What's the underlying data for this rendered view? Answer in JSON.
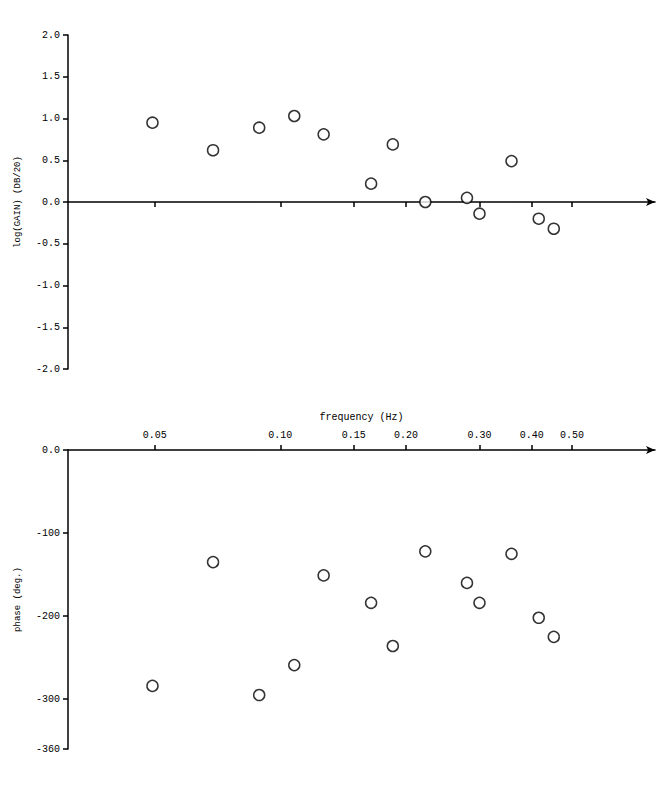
{
  "chart_data": [
    {
      "type": "scatter",
      "y_label": "log(GAIN) (DB/20)",
      "x": [
        0.0494,
        0.069,
        0.089,
        0.108,
        0.127,
        0.165,
        0.186,
        0.2225,
        0.28,
        0.3,
        0.358,
        0.416,
        0.452
      ],
      "values": [
        0.95,
        0.62,
        0.89,
        1.03,
        0.81,
        0.22,
        0.69,
        0.0,
        0.05,
        -0.14,
        0.49,
        -0.2,
        -0.32
      ],
      "xlim": [
        0.031,
        0.79
      ],
      "xticks": [
        0.05,
        {
          "value": 0.1,
          "label": "0.10"
        },
        0.15,
        {
          "value": 0.2,
          "label": "0.20"
        },
        {
          "value": 0.3,
          "label": "0.30"
        },
        {
          "value": 0.4,
          "label": "0.40"
        },
        {
          "value": 0.5,
          "label": "0.50"
        }
      ],
      "ylim": [
        -2,
        2
      ],
      "yticks": [
        {
          "value": -2,
          "label": "-2.0"
        },
        -1.5,
        {
          "value": -1,
          "label": "-1.0"
        },
        -0.5,
        {
          "value": 0,
          "label": "0.0"
        },
        0.5,
        {
          "value": 1,
          "label": "1.0"
        },
        1.5,
        {
          "value": 2,
          "label": "2.0"
        }
      ],
      "log": "x",
      "tick_labels": "y",
      "grid": false,
      "color": "#000000",
      "marker": "open circle"
    },
    {
      "type": "scatter",
      "x_label": "frequency (Hz)",
      "y_label": "phase (deg.)",
      "x": [
        0.0494,
        0.069,
        0.089,
        0.108,
        0.127,
        0.165,
        0.186,
        0.2225,
        0.28,
        0.3,
        0.358,
        0.416,
        0.452
      ],
      "values": [
        -284,
        -135,
        -295,
        -259,
        -151,
        -184,
        -236,
        -122,
        -160,
        -184,
        -125,
        -202,
        -225
      ],
      "xlim": [
        0.031,
        0.79
      ],
      "xticks": [
        0.05,
        {
          "value": 0.1,
          "label": "0.10"
        },
        0.15,
        {
          "value": 0.2,
          "label": "0.20"
        },
        {
          "value": 0.3,
          "label": "0.30"
        },
        {
          "value": 0.4,
          "label": "0.40"
        },
        {
          "value": 0.5,
          "label": "0.50"
        }
      ],
      "ylim": [
        -360,
        0
      ],
      "yticks": [
        -360,
        -300,
        -200,
        -100,
        {
          "value": 0,
          "label": "0.0"
        }
      ],
      "log": "x",
      "grid": false,
      "color": "#000000",
      "marker": "open circle"
    }
  ]
}
